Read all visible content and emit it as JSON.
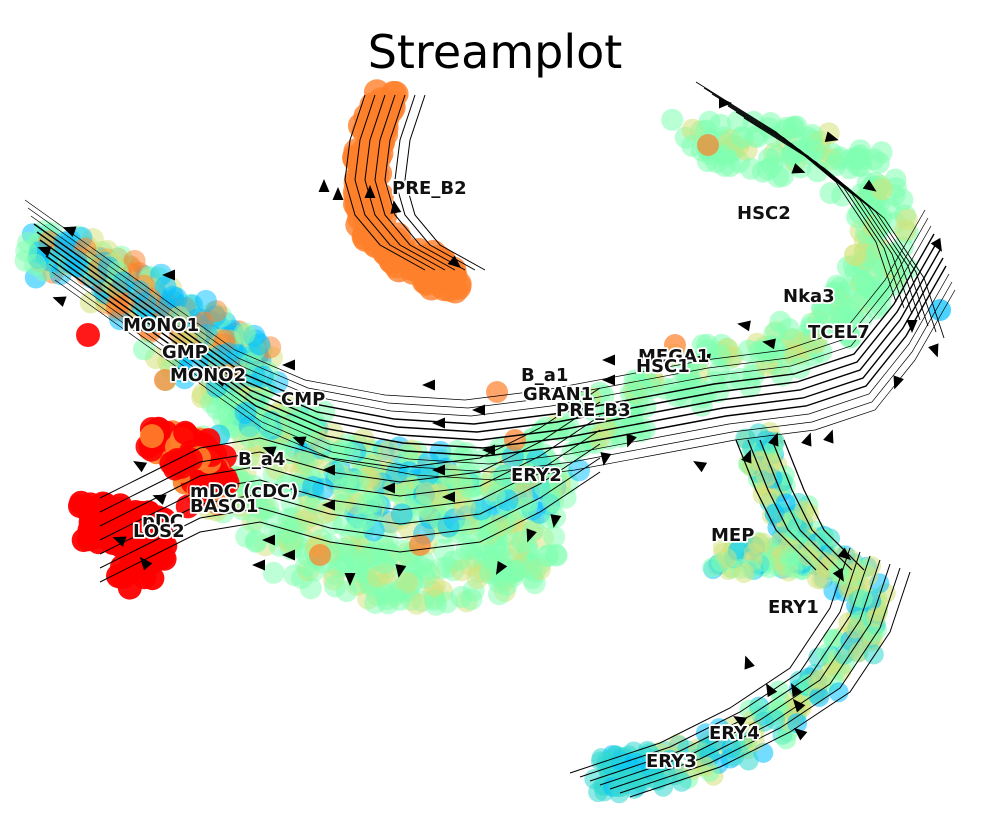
{
  "chart_data": {
    "type": "scatter",
    "title": "Streamplot",
    "xlabel": "",
    "ylabel": "",
    "grid": false,
    "axes_visible": false,
    "overlay": "velocity streamlines with arrowheads",
    "colormap": [
      "#00bfff",
      "#7fffb0",
      "#d4e27a",
      "#ff7f2a",
      "#ff0000"
    ],
    "cluster_labels": [
      "PRE_B2",
      "HSC2",
      "Nka3",
      "TCEL7",
      "MONO1",
      "GMP",
      "MONO2",
      "CMP",
      "MEGA1",
      "HSC1",
      "B_a1",
      "GRAN1",
      "PRE_B3",
      "B_a4",
      "ERY2",
      "mDC (cDC)",
      "BASO1",
      "pDC",
      "LOS2",
      "MEP",
      "ERY1",
      "ERY4",
      "ERY3"
    ]
  }
}
